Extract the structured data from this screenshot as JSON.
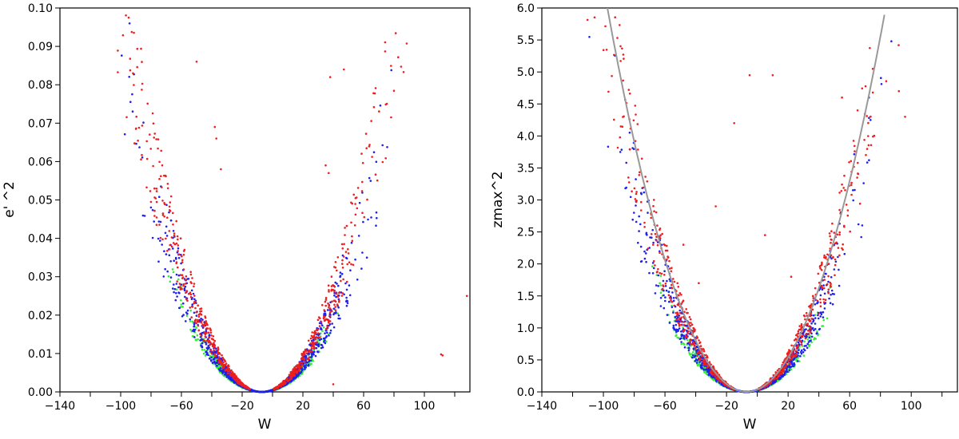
{
  "chart_data": [
    {
      "type": "scatter",
      "title": "",
      "xlabel": "W",
      "ylabel": "e' ^2",
      "xlim": [
        -140,
        130
      ],
      "ylim": [
        0,
        0.1
      ],
      "xticks": [
        -140,
        -120,
        -100,
        -80,
        -60,
        -40,
        -20,
        0,
        20,
        40,
        60,
        80,
        100,
        120
      ],
      "xtick_labels": [
        "-140",
        "",
        "-100",
        "",
        "-60",
        "",
        "-20",
        "",
        "20",
        "",
        "60",
        "",
        "100",
        ""
      ],
      "yticks": [
        0,
        0.01,
        0.02,
        0.03,
        0.04,
        0.05,
        0.06,
        0.07,
        0.08,
        0.09,
        0.1
      ],
      "ytick_labels": [
        "0.00",
        "0.01",
        "0.02",
        "0.03",
        "0.04",
        "0.05",
        "0.06",
        "0.07",
        "0.08",
        "0.09",
        "0.10"
      ],
      "grid": false,
      "series": [
        {
          "name": "green",
          "color": "#33ee33",
          "center": -7,
          "coef_k": 0.0,
          "envelope": {
            "left": [
              [
                -60,
                0.013
              ],
              [
                -45,
                0.007
              ],
              [
                -30,
                0.0035
              ],
              [
                -7,
                0
              ],
              [
                15,
                0.0035
              ],
              [
                30,
                0.007
              ],
              [
                42,
                0.01
              ]
            ]
          }
        },
        {
          "name": "blue",
          "color": "#1f1fee",
          "envelope": {
            "left": [
              [
                -90,
                0.046
              ],
              [
                -75,
                0.035
              ],
              [
                -60,
                0.024
              ],
              [
                -40,
                0.012
              ],
              [
                -7,
                0
              ],
              [
                30,
                0.01
              ],
              [
                50,
                0.02
              ],
              [
                62,
                0.03
              ]
            ]
          }
        },
        {
          "name": "red",
          "color": "#ee1f1f",
          "envelope": {
            "left": [
              [
                -112,
                0.097
              ],
              [
                -95,
                0.085
              ],
              [
                -80,
                0.06
              ],
              [
                -60,
                0.035
              ],
              [
                -30,
                0.01
              ],
              [
                -7,
                0
              ],
              [
                20,
                0.005
              ],
              [
                40,
                0.018
              ],
              [
                60,
                0.05
              ],
              [
                80,
                0.097
              ]
            ]
          }
        }
      ],
      "outliers": [
        {
          "x": -50,
          "y": 0.086
        },
        {
          "x": -38,
          "y": 0.069
        },
        {
          "x": -37,
          "y": 0.066
        },
        {
          "x": -34,
          "y": 0.058
        },
        {
          "x": 38,
          "y": 0.082
        },
        {
          "x": 47,
          "y": 0.084
        },
        {
          "x": 35,
          "y": 0.059
        },
        {
          "x": 37,
          "y": 0.057
        },
        {
          "x": 112,
          "y": 0.0095
        },
        {
          "x": 111,
          "y": 0.0098
        },
        {
          "x": 128,
          "y": 0.025
        },
        {
          "x": 40,
          "y": 0.002
        }
      ]
    },
    {
      "type": "scatter",
      "title": "",
      "xlabel": "W",
      "ylabel": "zmax^2",
      "xlim": [
        -140,
        130
      ],
      "ylim": [
        0,
        6.0
      ],
      "xticks": [
        -140,
        -120,
        -100,
        -80,
        -60,
        -40,
        -20,
        0,
        20,
        40,
        60,
        80,
        100,
        120
      ],
      "xtick_labels": [
        "-140",
        "",
        "-100",
        "",
        "-60",
        "",
        "-20",
        "",
        "20",
        "",
        "60",
        "",
        "100",
        ""
      ],
      "yticks": [
        0,
        0.5,
        1.0,
        1.5,
        2.0,
        2.5,
        3.0,
        3.5,
        4.0,
        4.5,
        5.0,
        5.5,
        6.0
      ],
      "ytick_labels": [
        "0.0",
        "0.5",
        "1.0",
        "1.5",
        "2.0",
        "2.5",
        "3.0",
        "3.5",
        "4.0",
        "4.5",
        "5.0",
        "5.5",
        "6.0"
      ],
      "grid": false,
      "fit_curve": {
        "color": "#999999",
        "center": -7,
        "coef": 0.000733,
        "x_range": [
          -97.4,
          83.4
        ]
      },
      "series": [
        {
          "name": "green",
          "color": "#33ee33"
        },
        {
          "name": "blue",
          "color": "#1f1fee"
        },
        {
          "name": "red",
          "color": "#ee1f1f"
        }
      ],
      "outliers": [
        {
          "x": -5,
          "y": 4.95
        },
        {
          "x": -15,
          "y": 4.2
        },
        {
          "x": -27,
          "y": 2.9
        },
        {
          "x": -48,
          "y": 2.3
        },
        {
          "x": -38,
          "y": 1.7
        },
        {
          "x": 10,
          "y": 4.95
        },
        {
          "x": 5,
          "y": 2.45
        },
        {
          "x": 22,
          "y": 1.8
        },
        {
          "x": 55,
          "y": 4.6
        },
        {
          "x": 75,
          "y": 5.05
        },
        {
          "x": 92,
          "y": 4.7
        },
        {
          "x": 96,
          "y": 4.3
        }
      ]
    }
  ]
}
